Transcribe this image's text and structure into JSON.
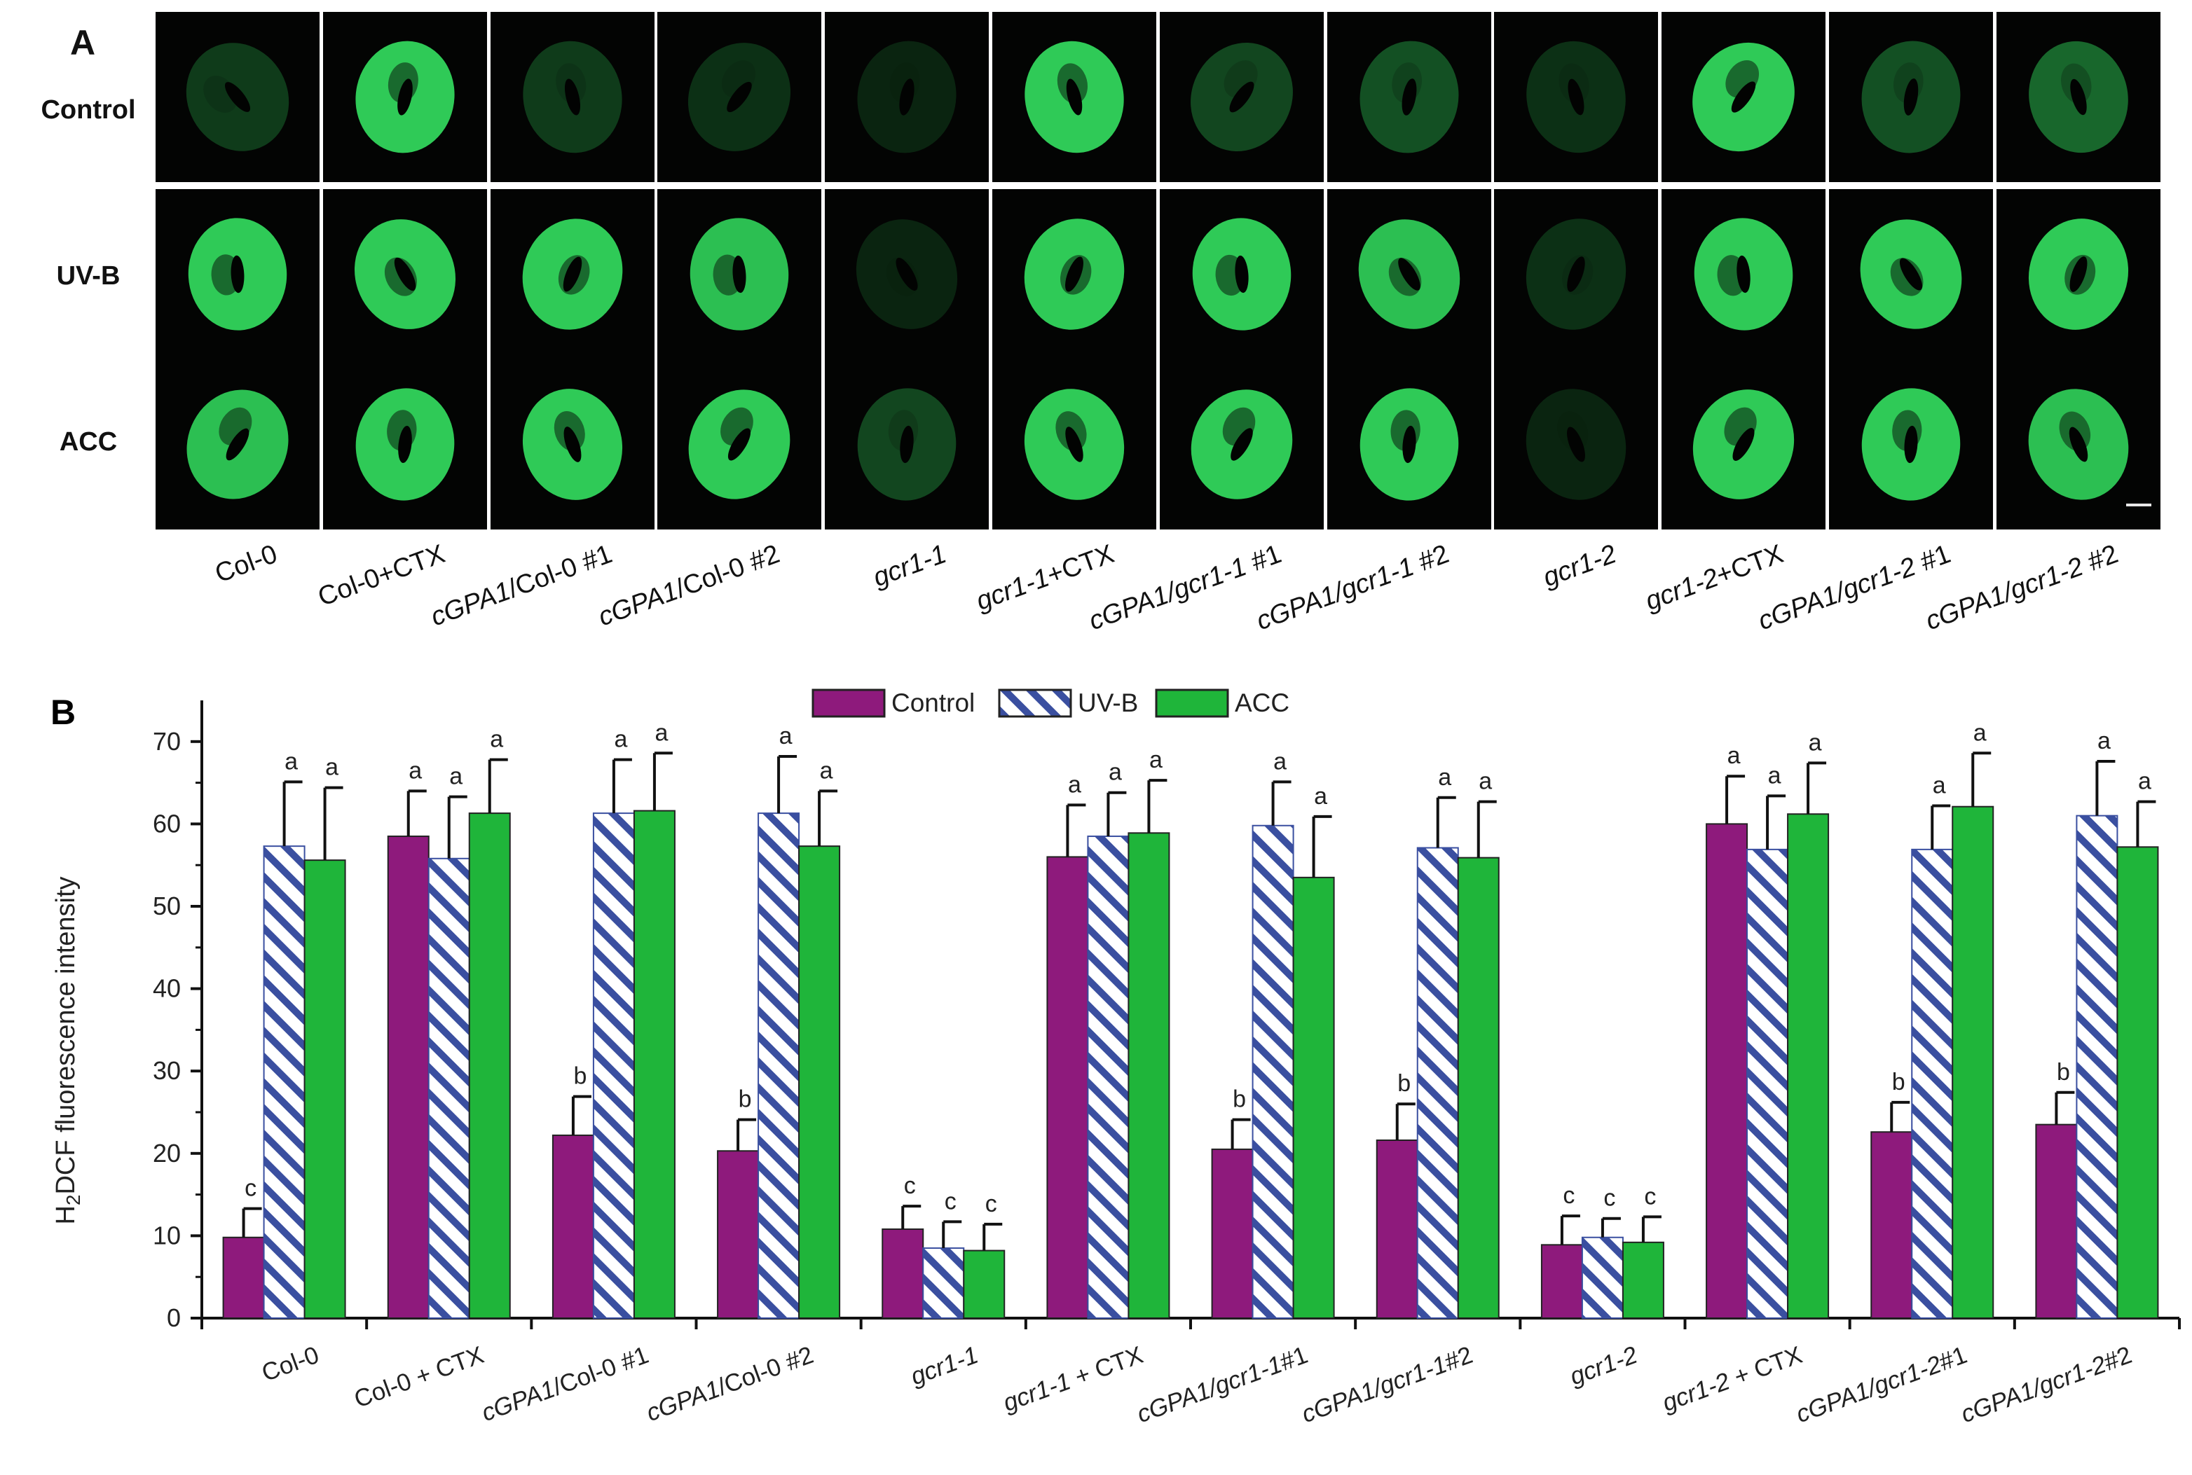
{
  "panel_a": {
    "letter": "A",
    "rows": [
      "Control",
      "UV-B",
      "ACC"
    ],
    "genotypes": [
      [
        {
          "t": "Col-0",
          "i": false
        }
      ],
      [
        {
          "t": "Col-0+CTX",
          "i": false
        }
      ],
      [
        {
          "t": "cGPA1",
          "i": true
        },
        {
          "t": "/Col-0 #1",
          "i": false
        }
      ],
      [
        {
          "t": "cGPA1",
          "i": true
        },
        {
          "t": "/Col-0 #2",
          "i": false
        }
      ],
      [
        {
          "t": "gcr1-1",
          "i": true
        }
      ],
      [
        {
          "t": "gcr1-1",
          "i": true
        },
        {
          "t": "+CTX",
          "i": false
        }
      ],
      [
        {
          "t": "cGPA1/gcr1-1",
          "i": true
        },
        {
          "t": " #1",
          "i": false
        }
      ],
      [
        {
          "t": "cGPA1/gcr1-1",
          "i": true
        },
        {
          "t": " #2",
          "i": false
        }
      ],
      [
        {
          "t": "gcr1-2",
          "i": true
        }
      ],
      [
        {
          "t": "gcr1-2",
          "i": true
        },
        {
          "t": "+CTX",
          "i": false
        }
      ],
      [
        {
          "t": "cGPA1/gcr1-2",
          "i": true
        },
        {
          "t": " #1",
          "i": false
        }
      ],
      [
        {
          "t": "cGPA1/gcr1-2",
          "i": true
        },
        {
          "t": " #2",
          "i": false
        }
      ]
    ],
    "fluorescence_level": [
      [
        0.25,
        0.9,
        0.25,
        0.2,
        0.15,
        0.9,
        0.3,
        0.35,
        0.2,
        0.9,
        0.35,
        0.45
      ],
      [
        0.9,
        0.9,
        0.9,
        0.85,
        0.15,
        0.9,
        0.9,
        0.85,
        0.2,
        0.9,
        0.9,
        0.9
      ],
      [
        0.85,
        0.9,
        0.9,
        0.9,
        0.3,
        0.9,
        0.9,
        0.9,
        0.15,
        0.9,
        0.9,
        0.85
      ]
    ],
    "stain_color": "#34e060"
  },
  "chart_data": {
    "type": "bar",
    "letter": "B",
    "ylabel": "H2DCF fluorescence intensity",
    "ylabel_main": "H",
    "ylabel_sub": "2",
    "ylabel_rest": "DCF fluorescence intensity",
    "ylim": [
      0,
      75
    ],
    "yticks": [
      0,
      10,
      20,
      30,
      40,
      50,
      60,
      70
    ],
    "grid": false,
    "legend_position": "top-center",
    "categories": [
      [
        {
          "t": "Col-0",
          "i": false
        }
      ],
      [
        {
          "t": "Col-0 + CTX",
          "i": false
        }
      ],
      [
        {
          "t": "cGPA1",
          "i": true
        },
        {
          "t": "/Col-0 #1",
          "i": false
        }
      ],
      [
        {
          "t": "cGPA1",
          "i": true
        },
        {
          "t": "/Col-0 #2",
          "i": false
        }
      ],
      [
        {
          "t": "gcr1-1",
          "i": true
        }
      ],
      [
        {
          "t": "gcr1-1",
          "i": true
        },
        {
          "t": " + CTX",
          "i": false
        }
      ],
      [
        {
          "t": "cGPA1/gcr1-1",
          "i": true
        },
        {
          "t": "#1",
          "i": false
        }
      ],
      [
        {
          "t": "cGPA1/gcr1-1",
          "i": true
        },
        {
          "t": "#2",
          "i": false
        }
      ],
      [
        {
          "t": "gcr1-2",
          "i": true
        }
      ],
      [
        {
          "t": "gcr1-2",
          "i": true
        },
        {
          "t": " + CTX",
          "i": false
        }
      ],
      [
        {
          "t": "cGPA1/gcr1-2",
          "i": true
        },
        {
          "t": "#1",
          "i": false
        }
      ],
      [
        {
          "t": "cGPA1/gcr1-2",
          "i": true
        },
        {
          "t": "#2",
          "i": false
        }
      ]
    ],
    "series": [
      {
        "name": "Control",
        "color": "#8e1a7c",
        "pattern": "solid",
        "values": [
          9.8,
          58.5,
          22.2,
          20.3,
          10.8,
          56,
          20.5,
          21.6,
          8.9,
          60,
          22.6,
          23.5
        ],
        "errors": [
          3.5,
          5.5,
          4.7,
          3.8,
          2.8,
          6.3,
          3.6,
          4.4,
          3.5,
          5.8,
          3.6,
          3.9
        ],
        "letters": [
          "c",
          "a",
          "b",
          "b",
          "c",
          "a",
          "b",
          "b",
          "c",
          "a",
          "b",
          "b"
        ]
      },
      {
        "name": "UV-B",
        "color": "#3a4fa0",
        "pattern": "hatch",
        "values": [
          57.3,
          55.8,
          61.3,
          61.3,
          8.5,
          58.5,
          59.8,
          57.1,
          9.8,
          56.9,
          56.9,
          61
        ],
        "errors": [
          7.8,
          7.5,
          6.5,
          6.9,
          3.2,
          5.3,
          5.3,
          6.1,
          2.3,
          6.5,
          5.3,
          6.6
        ],
        "letters": [
          "a",
          "a",
          "a",
          "a",
          "c",
          "a",
          "a",
          "a",
          "c",
          "a",
          "a",
          "a"
        ]
      },
      {
        "name": "ACC",
        "color": "#1fb53a",
        "pattern": "solid",
        "values": [
          55.6,
          61.3,
          61.6,
          57.3,
          8.2,
          58.9,
          53.5,
          55.9,
          9.2,
          61.2,
          62.1,
          57.2
        ],
        "errors": [
          8.8,
          6.5,
          7,
          6.7,
          3.2,
          6.4,
          7.4,
          6.8,
          3.1,
          6.2,
          6.5,
          5.5
        ],
        "letters": [
          "a",
          "a",
          "a",
          "a",
          "c",
          "a",
          "a",
          "a",
          "c",
          "a",
          "a",
          "a"
        ]
      }
    ]
  }
}
